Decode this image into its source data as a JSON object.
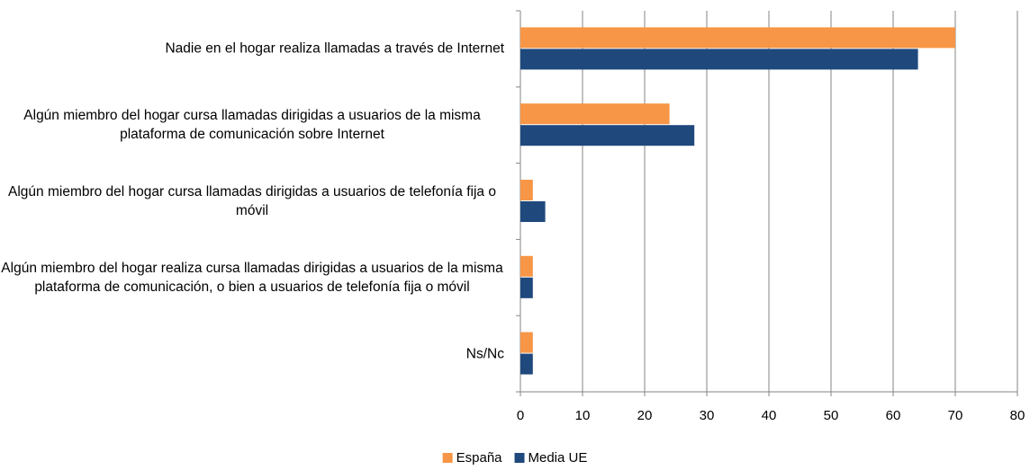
{
  "chart_data": {
    "type": "bar",
    "orientation": "horizontal",
    "categories": [
      "Nadie en el hogar realiza llamadas a través de Internet",
      "Algún miembro del hogar cursa llamadas dirigidas a usuarios de la misma plataforma de comunicación sobre Internet",
      "Algún miembro del hogar cursa llamadas dirigidas a usuarios de telefonía fija o móvil",
      "Algún miembro del hogar realiza cursa llamadas dirigidas a usuarios de la misma plataforma de comunicación, o bien a usuarios de telefonía fija o móvil",
      "Ns/Nc"
    ],
    "series": [
      {
        "name": "España",
        "color": "#f79646",
        "values": [
          70,
          24,
          2,
          2,
          2
        ]
      },
      {
        "name": "Media UE",
        "color": "#1f497d",
        "values": [
          64,
          28,
          4,
          2,
          2
        ]
      }
    ],
    "xlim": [
      0,
      80
    ],
    "xticks": [
      0,
      10,
      20,
      30,
      40,
      50,
      60,
      70,
      80
    ],
    "grid": true,
    "legend": "bottom"
  }
}
